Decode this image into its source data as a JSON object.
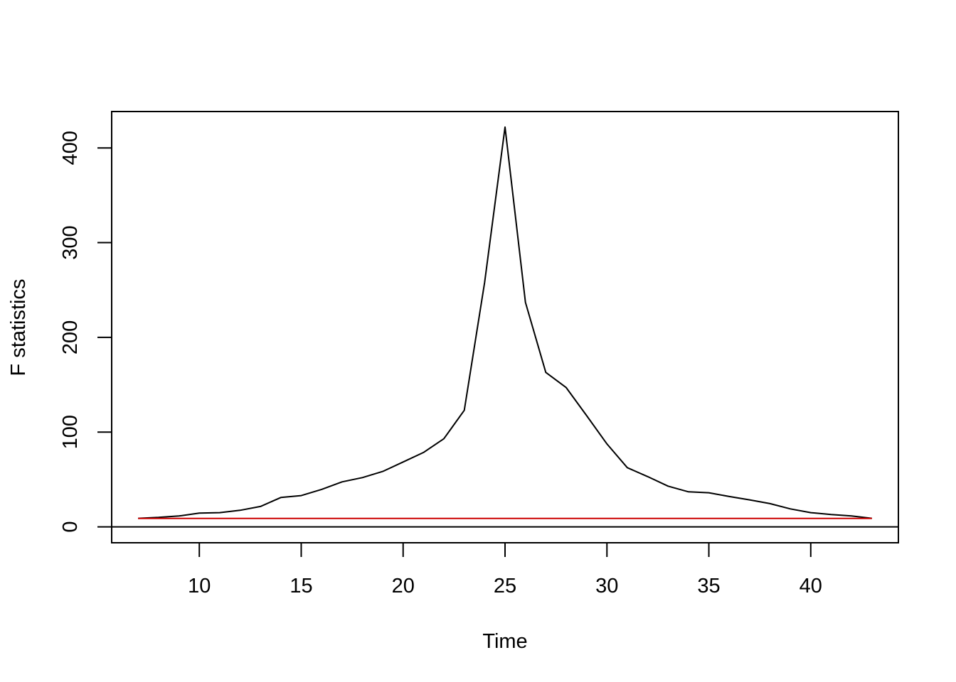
{
  "chart_data": {
    "type": "line",
    "title": "",
    "xlabel": "Time",
    "ylabel": "F statistics",
    "xlim": [
      5.7,
      44.3
    ],
    "ylim": [
      -16.8,
      438.4
    ],
    "x_ticks": [
      10,
      15,
      20,
      25,
      30,
      35,
      40
    ],
    "y_ticks": [
      0,
      100,
      200,
      300,
      400
    ],
    "grid": false,
    "legend": "none",
    "reference_lines": [
      {
        "value": 0,
        "orientation": "horizontal",
        "color": "#000000"
      }
    ],
    "series": [
      {
        "color": "#000000",
        "x": [
          7,
          8,
          9,
          10,
          11,
          12,
          13,
          14,
          15,
          16,
          17,
          18,
          19,
          20,
          21,
          22,
          23,
          24,
          25,
          26,
          27,
          28,
          29,
          30,
          31,
          32,
          33,
          34,
          35,
          36,
          37,
          38,
          39,
          40,
          41,
          42,
          43
        ],
        "values": [
          9,
          10,
          11.5,
          14.5,
          15,
          17.5,
          21.5,
          31,
          33,
          39.5,
          47.5,
          52,
          58.5,
          68.5,
          78.5,
          93,
          123,
          258,
          422,
          237,
          163,
          147,
          117.5,
          87.5,
          62.5,
          53,
          43,
          37,
          36,
          32,
          28.5,
          24.5,
          19,
          15,
          13,
          11.5,
          9
        ]
      },
      {
        "color": "#cc0000",
        "x": [
          7,
          43
        ],
        "values": [
          8.9,
          8.9
        ]
      }
    ]
  }
}
